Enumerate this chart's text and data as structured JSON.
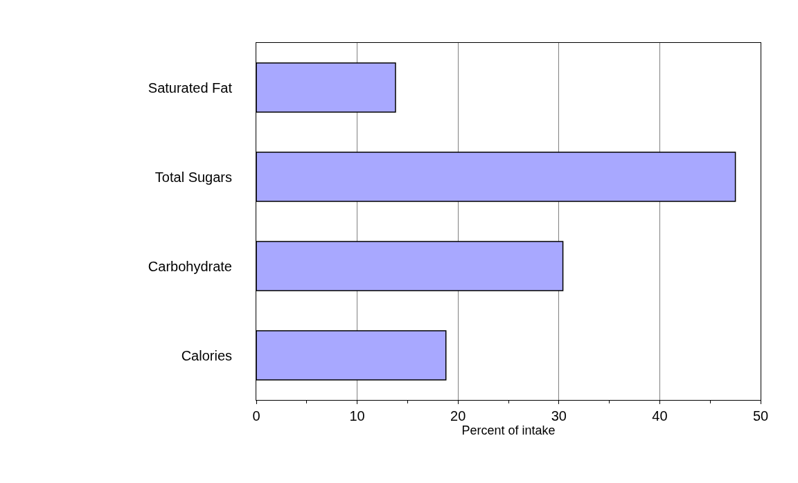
{
  "chart_data": {
    "type": "bar",
    "orientation": "horizontal",
    "xlabel": "Percent of intake",
    "categories": [
      "Saturated Fat",
      "Total Sugars",
      "Carbohydrate",
      "Calories"
    ],
    "values": [
      13.8,
      47.5,
      30.4,
      18.8
    ],
    "color": "#a8a8ff",
    "xlim": [
      0,
      50
    ],
    "xticks": [
      0,
      10,
      20,
      30,
      40,
      50
    ],
    "grid": "x",
    "legend": false
  }
}
